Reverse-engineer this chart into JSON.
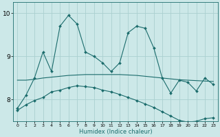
{
  "xlabel": "Humidex (Indice chaleur)",
  "bg_color": "#cce8e8",
  "grid_color": "#aad0d0",
  "line_color": "#1a6b6b",
  "xlim": [
    -0.5,
    23.5
  ],
  "ylim": [
    7.5,
    10.25
  ],
  "yticks": [
    8,
    9,
    10
  ],
  "xticks": [
    0,
    1,
    2,
    3,
    4,
    5,
    6,
    7,
    8,
    9,
    10,
    11,
    12,
    13,
    14,
    15,
    16,
    17,
    18,
    19,
    20,
    21,
    22,
    23
  ],
  "series1_x": [
    0,
    1,
    2,
    3,
    4,
    5,
    6,
    7,
    8,
    9,
    10,
    11,
    12,
    13,
    14,
    15,
    16,
    17,
    18,
    19,
    20,
    21,
    22,
    23
  ],
  "series1_y": [
    7.8,
    8.1,
    8.5,
    9.1,
    8.65,
    9.7,
    9.95,
    9.75,
    9.1,
    9.0,
    8.85,
    8.65,
    8.85,
    9.55,
    9.7,
    9.65,
    9.2,
    8.5,
    8.15,
    8.45,
    8.4,
    8.2,
    8.5,
    8.35
  ],
  "series2_x": [
    0,
    1,
    2,
    3,
    4,
    5,
    6,
    7,
    8,
    9,
    10,
    11,
    12,
    13,
    14,
    15,
    16,
    17,
    18,
    19,
    20,
    21,
    22,
    23
  ],
  "series2_y": [
    8.45,
    8.45,
    8.47,
    8.5,
    8.52,
    8.54,
    8.56,
    8.57,
    8.58,
    8.58,
    8.58,
    8.58,
    8.58,
    8.57,
    8.56,
    8.54,
    8.52,
    8.5,
    8.48,
    8.46,
    8.45,
    8.44,
    8.43,
    8.42
  ],
  "series3_x": [
    0,
    1,
    2,
    3,
    4,
    5,
    6,
    7,
    8,
    9,
    10,
    11,
    12,
    13,
    14,
    15,
    16,
    17,
    18,
    19,
    20,
    21,
    22,
    23
  ],
  "series3_y": [
    7.75,
    7.88,
    7.98,
    8.05,
    8.18,
    8.22,
    8.28,
    8.32,
    8.3,
    8.28,
    8.22,
    8.18,
    8.12,
    8.05,
    7.98,
    7.9,
    7.82,
    7.72,
    7.62,
    7.52,
    7.48,
    7.5,
    7.56,
    7.58
  ]
}
